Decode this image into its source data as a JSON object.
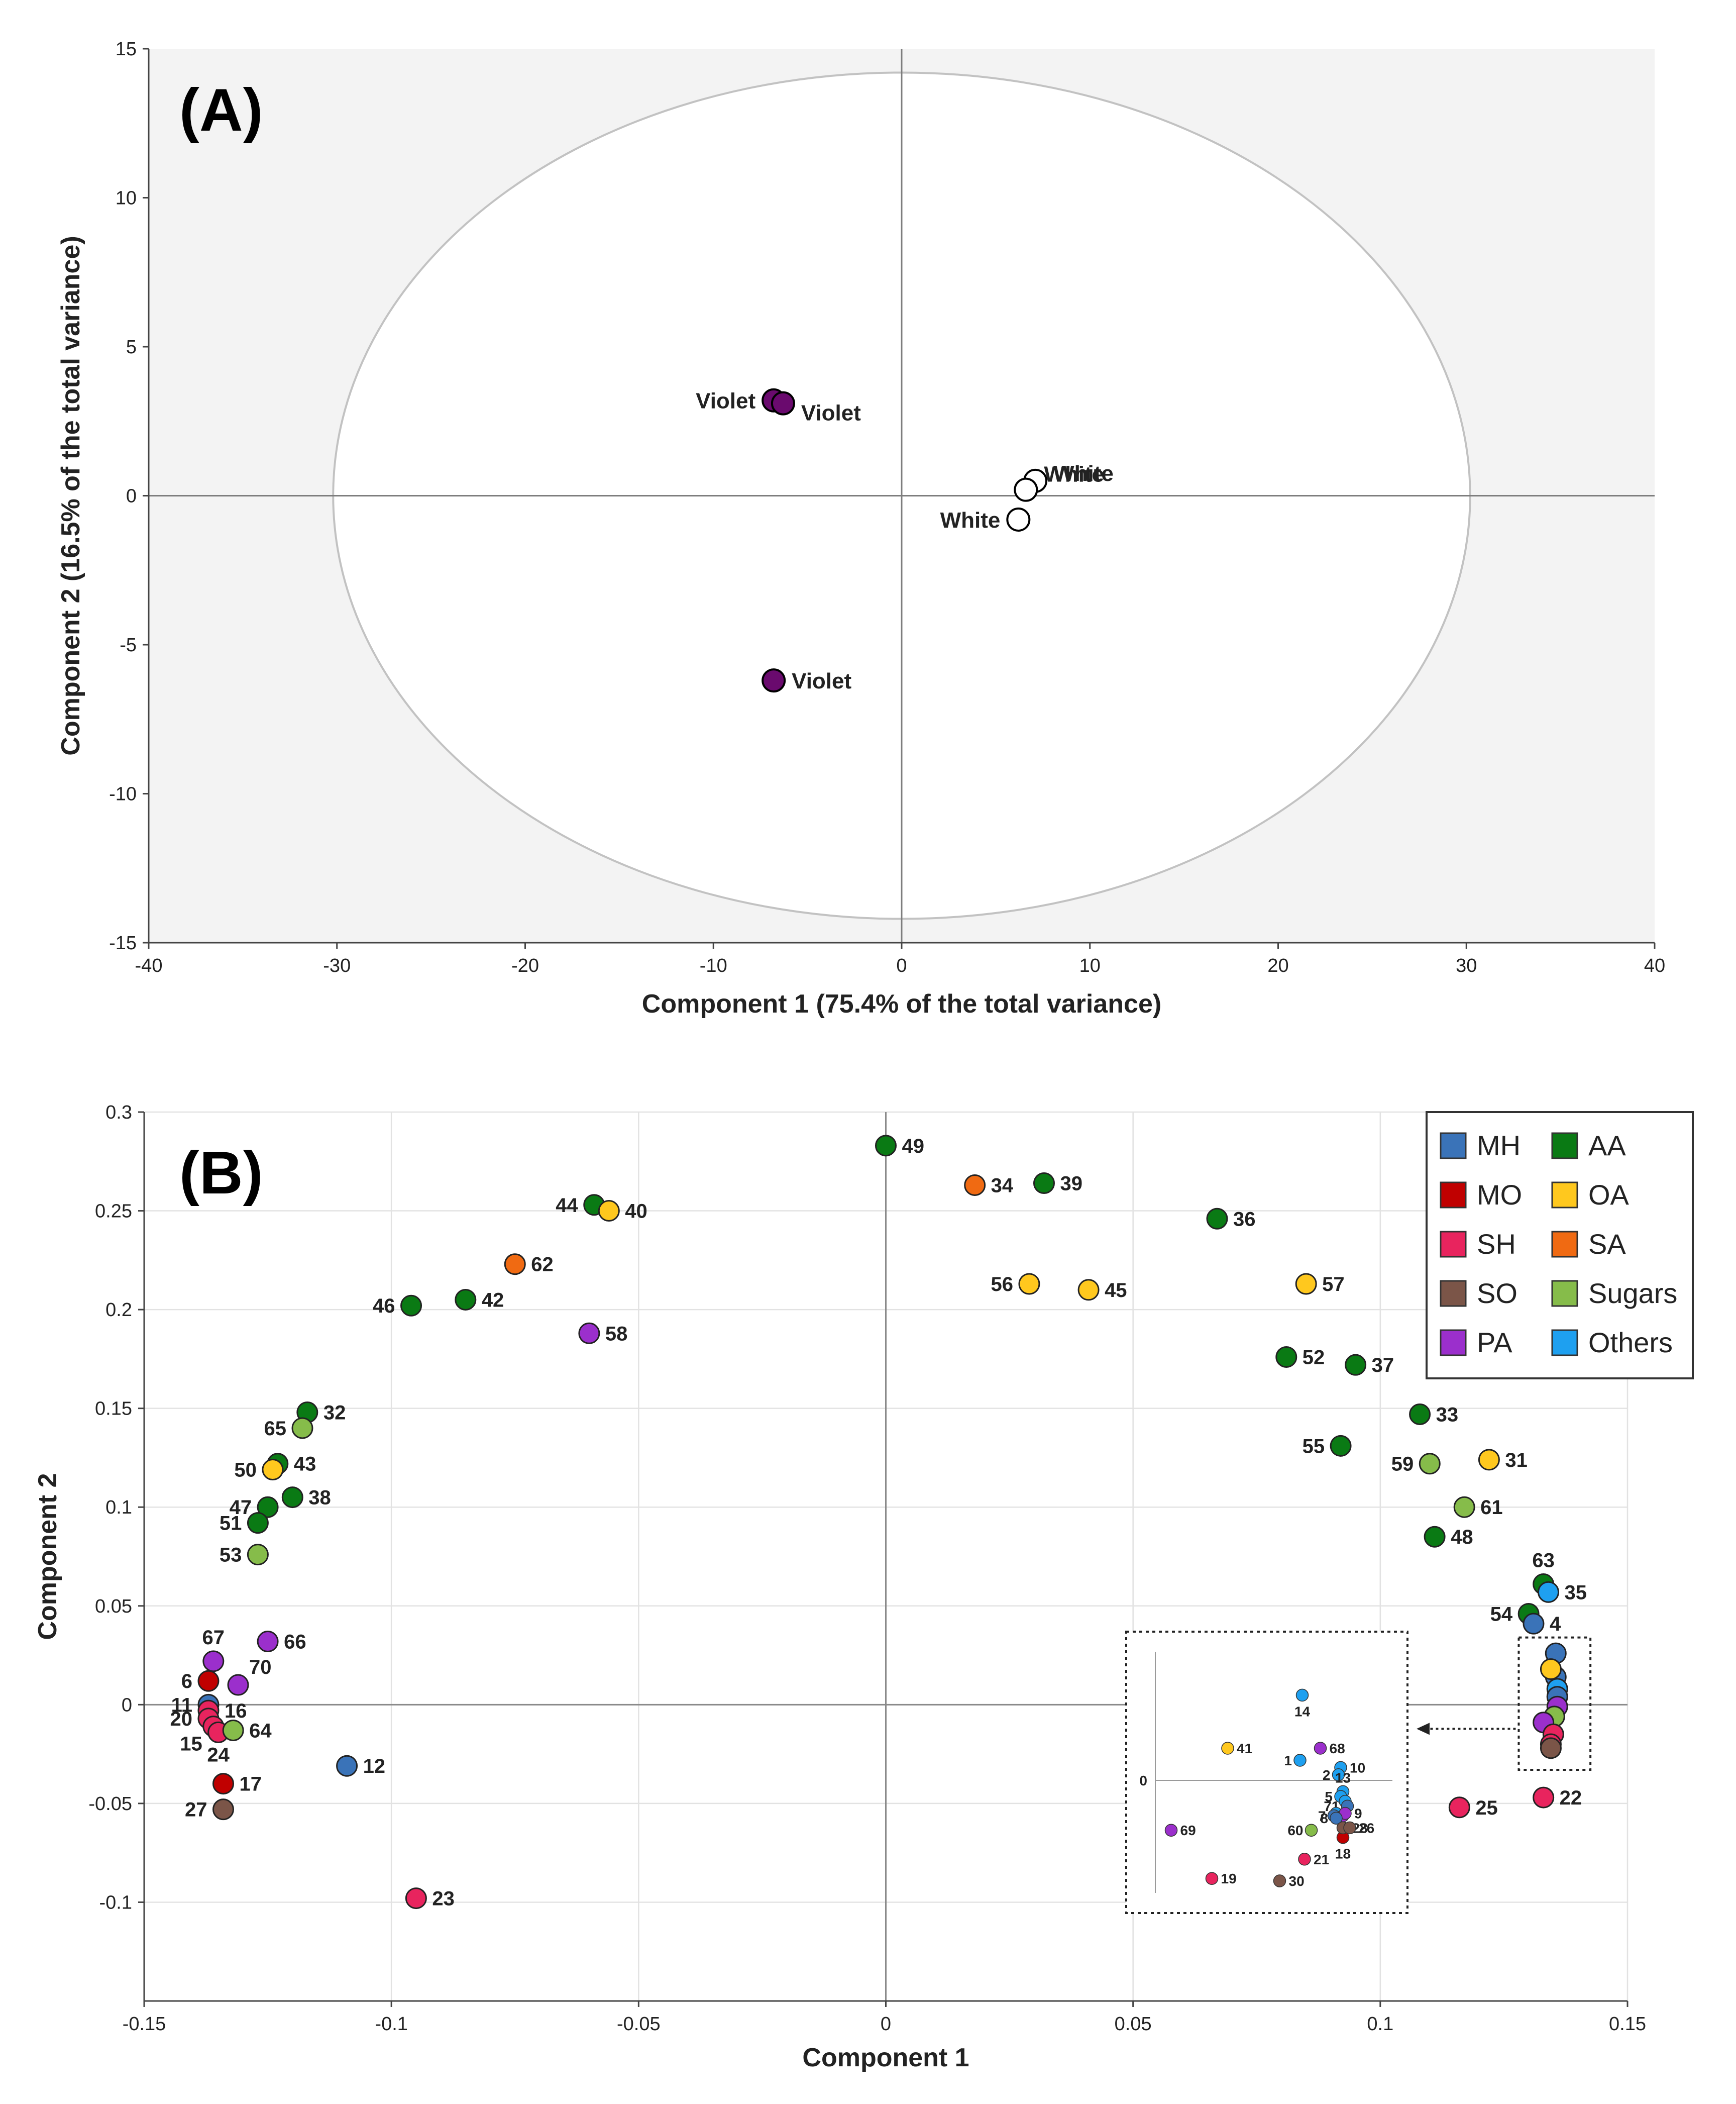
{
  "colors": {
    "violet": "#6a0a6e",
    "white": "#ffffff",
    "MH": "#3a73b8",
    "MO": "#c00000",
    "SH": "#e8245e",
    "SO": "#7b5548",
    "PA": "#9b2fcc",
    "AA": "#0a7a14",
    "OA": "#ffc81e",
    "SA": "#f06a12",
    "Sugars": "#86bc4a",
    "Others": "#1ea0f0"
  },
  "chart_data": [
    {
      "panel": "(A)",
      "type": "scatter",
      "xlabel": "Component 1 (75.4% of the total variance)",
      "ylabel": "Component 2 (16.5% of the total variance)",
      "xlim": [
        -40,
        40
      ],
      "ylim": [
        -15,
        15
      ],
      "xticks": [
        "-40",
        "-30",
        "-20",
        "-10",
        "0",
        "10",
        "20",
        "30",
        "40"
      ],
      "yticks": [
        "15",
        "10",
        "5",
        "0",
        "-5",
        "-10",
        "-15"
      ],
      "ellipse": {
        "cx": 0,
        "cy": 0,
        "rx": 30.2,
        "ry": 14.2
      },
      "points": [
        {
          "x": -6.8,
          "y": 3.2,
          "label": "Violet",
          "group": "violet"
        },
        {
          "x": -6.3,
          "y": 3.1,
          "label": "Violet",
          "group": "violet"
        },
        {
          "x": -6.8,
          "y": -6.2,
          "label": "Violet",
          "group": "violet"
        },
        {
          "x": 7.1,
          "y": 0.5,
          "label": "White",
          "group": "white"
        },
        {
          "x": 6.6,
          "y": 0.2,
          "label": "White",
          "group": "white"
        },
        {
          "x": 6.2,
          "y": -0.8,
          "label": "White",
          "group": "white"
        }
      ]
    },
    {
      "panel": "(B)",
      "type": "scatter",
      "xlabel": "Component 1",
      "ylabel": "Component 2",
      "xlim": [
        -0.15,
        0.15
      ],
      "ylim": [
        -0.15,
        0.3
      ],
      "xticks": [
        "-0.15",
        "-0.1",
        "-0.05",
        "0",
        "0.05",
        "0.1",
        "0.15"
      ],
      "yticks": [
        "0.3",
        "0.25",
        "0.2",
        "0.15",
        "0.1",
        "0.05",
        "0",
        "-0.05",
        "-0.1"
      ],
      "legend": [
        {
          "key": "MH",
          "label": "MH"
        },
        {
          "key": "AA",
          "label": "AA"
        },
        {
          "key": "MO",
          "label": "MO"
        },
        {
          "key": "OA",
          "label": "OA"
        },
        {
          "key": "SH",
          "label": "SH"
        },
        {
          "key": "SA",
          "label": "SA"
        },
        {
          "key": "SO",
          "label": "SO"
        },
        {
          "key": "Sugars",
          "label": "Sugars"
        },
        {
          "key": "PA",
          "label": "PA"
        },
        {
          "key": "Others",
          "label": "Others"
        }
      ],
      "points": [
        {
          "x": 0.0,
          "y": 0.283,
          "label": "49",
          "group": "AA",
          "side": "right"
        },
        {
          "x": 0.018,
          "y": 0.263,
          "label": "34",
          "group": "SA",
          "side": "right"
        },
        {
          "x": 0.032,
          "y": 0.264,
          "label": "39",
          "group": "AA",
          "side": "right"
        },
        {
          "x": 0.067,
          "y": 0.246,
          "label": "36",
          "group": "AA",
          "side": "right"
        },
        {
          "x": -0.059,
          "y": 0.253,
          "label": "44",
          "group": "AA",
          "side": "left"
        },
        {
          "x": -0.056,
          "y": 0.25,
          "label": "40",
          "group": "OA",
          "side": "right"
        },
        {
          "x": -0.075,
          "y": 0.223,
          "label": "62",
          "group": "SA",
          "side": "right"
        },
        {
          "x": -0.096,
          "y": 0.202,
          "label": "46",
          "group": "AA",
          "side": "left"
        },
        {
          "x": -0.085,
          "y": 0.205,
          "label": "42",
          "group": "AA",
          "side": "right"
        },
        {
          "x": -0.06,
          "y": 0.188,
          "label": "58",
          "group": "PA",
          "side": "right"
        },
        {
          "x": 0.029,
          "y": 0.213,
          "label": "56",
          "group": "OA",
          "side": "left"
        },
        {
          "x": 0.041,
          "y": 0.21,
          "label": "45",
          "group": "OA",
          "side": "right"
        },
        {
          "x": 0.085,
          "y": 0.213,
          "label": "57",
          "group": "OA",
          "side": "right"
        },
        {
          "x": 0.081,
          "y": 0.176,
          "label": "52",
          "group": "AA",
          "side": "right"
        },
        {
          "x": 0.095,
          "y": 0.172,
          "label": "37",
          "group": "AA",
          "side": "right"
        },
        {
          "x": 0.108,
          "y": 0.147,
          "label": "33",
          "group": "AA",
          "side": "right"
        },
        {
          "x": 0.092,
          "y": 0.131,
          "label": "55",
          "group": "AA",
          "side": "left"
        },
        {
          "x": 0.11,
          "y": 0.122,
          "label": "59",
          "group": "Sugars",
          "side": "left"
        },
        {
          "x": 0.122,
          "y": 0.124,
          "label": "31",
          "group": "OA",
          "side": "right"
        },
        {
          "x": 0.117,
          "y": 0.1,
          "label": "61",
          "group": "Sugars",
          "side": "right"
        },
        {
          "x": 0.111,
          "y": 0.085,
          "label": "48",
          "group": "AA",
          "side": "right"
        },
        {
          "x": 0.133,
          "y": 0.061,
          "label": "63",
          "group": "AA",
          "side": "above"
        },
        {
          "x": 0.134,
          "y": 0.057,
          "label": "35",
          "group": "Others",
          "side": "right"
        },
        {
          "x": 0.13,
          "y": 0.046,
          "label": "54",
          "group": "AA",
          "side": "left"
        },
        {
          "x": 0.131,
          "y": 0.041,
          "label": "4",
          "group": "MH",
          "side": "right"
        },
        {
          "x": -0.117,
          "y": 0.148,
          "label": "32",
          "group": "AA",
          "side": "right"
        },
        {
          "x": -0.118,
          "y": 0.14,
          "label": "65",
          "group": "Sugars",
          "side": "left"
        },
        {
          "x": -0.123,
          "y": 0.122,
          "label": "43",
          "group": "AA",
          "side": "right"
        },
        {
          "x": -0.124,
          "y": 0.119,
          "label": "50",
          "group": "OA",
          "side": "left"
        },
        {
          "x": -0.12,
          "y": 0.105,
          "label": "38",
          "group": "AA",
          "side": "right"
        },
        {
          "x": -0.125,
          "y": 0.1,
          "label": "47",
          "group": "AA",
          "side": "left"
        },
        {
          "x": -0.127,
          "y": 0.092,
          "label": "51",
          "group": "AA",
          "side": "left"
        },
        {
          "x": -0.127,
          "y": 0.076,
          "label": "53",
          "group": "Sugars",
          "side": "left"
        },
        {
          "x": -0.136,
          "y": 0.022,
          "label": "67",
          "group": "PA",
          "side": "above"
        },
        {
          "x": -0.125,
          "y": 0.032,
          "label": "66",
          "group": "PA",
          "side": "right"
        },
        {
          "x": -0.131,
          "y": 0.01,
          "label": "70",
          "group": "PA",
          "side": "aboveright"
        },
        {
          "x": -0.137,
          "y": 0.012,
          "label": "6",
          "group": "MO",
          "side": "left"
        },
        {
          "x": -0.137,
          "y": 0.0,
          "label": "11",
          "group": "MH",
          "side": "left"
        },
        {
          "x": -0.137,
          "y": -0.003,
          "label": "16",
          "group": "SH",
          "side": "right"
        },
        {
          "x": -0.137,
          "y": -0.007,
          "label": "20",
          "group": "SH",
          "side": "left"
        },
        {
          "x": -0.136,
          "y": -0.011,
          "label": "15",
          "group": "SH",
          "side": "belowleft"
        },
        {
          "x": -0.135,
          "y": -0.014,
          "label": "24",
          "group": "SH",
          "side": "below"
        },
        {
          "x": -0.132,
          "y": -0.013,
          "label": "64",
          "group": "Sugars",
          "side": "right"
        },
        {
          "x": -0.134,
          "y": -0.04,
          "label": "17",
          "group": "MO",
          "side": "right"
        },
        {
          "x": -0.134,
          "y": -0.053,
          "label": "27",
          "group": "SO",
          "side": "left"
        },
        {
          "x": -0.109,
          "y": -0.031,
          "label": "12",
          "group": "MH",
          "side": "right"
        },
        {
          "x": -0.095,
          "y": -0.098,
          "label": "23",
          "group": "SH",
          "side": "right"
        },
        {
          "x": 0.116,
          "y": -0.052,
          "label": "25",
          "group": "SH",
          "side": "right"
        },
        {
          "x": 0.133,
          "y": -0.047,
          "label": "22",
          "group": "SH",
          "side": "right"
        }
      ],
      "cluster": [
        {
          "x": 0.1355,
          "y": 0.026,
          "group": "MH"
        },
        {
          "x": 0.1355,
          "y": 0.014,
          "group": "MH"
        },
        {
          "x": 0.1345,
          "y": 0.018,
          "group": "OA"
        },
        {
          "x": 0.1358,
          "y": 0.008,
          "group": "Others"
        },
        {
          "x": 0.1358,
          "y": 0.004,
          "group": "MH"
        },
        {
          "x": 0.1358,
          "y": -0.001,
          "group": "PA"
        },
        {
          "x": 0.1352,
          "y": -0.006,
          "group": "Sugars"
        },
        {
          "x": 0.133,
          "y": -0.009,
          "group": "PA"
        },
        {
          "x": 0.135,
          "y": -0.015,
          "group": "SH"
        },
        {
          "x": 0.1345,
          "y": -0.02,
          "group": "SH"
        },
        {
          "x": 0.1345,
          "y": -0.022,
          "group": "SO"
        }
      ],
      "inset": {
        "zero_label": "0",
        "points": [
          {
            "u": 0.65,
            "v": 0.18,
            "label": "14",
            "group": "Others",
            "side": "below"
          },
          {
            "u": 0.32,
            "v": 0.4,
            "label": "41",
            "group": "OA",
            "side": "right"
          },
          {
            "u": 0.73,
            "v": 0.4,
            "label": "68",
            "group": "PA",
            "side": "right"
          },
          {
            "u": 0.64,
            "v": 0.45,
            "label": "1",
            "group": "Others",
            "side": "left"
          },
          {
            "u": 0.82,
            "v": 0.48,
            "label": "10",
            "group": "Others",
            "side": "right"
          },
          {
            "u": 0.81,
            "v": 0.51,
            "label": "2",
            "group": "Others",
            "side": "left"
          },
          {
            "u": 0.83,
            "v": 0.58,
            "label": "13",
            "group": "Others",
            "side": "above"
          },
          {
            "u": 0.82,
            "v": 0.6,
            "label": "5",
            "group": "Others",
            "side": "left"
          },
          {
            "u": 0.84,
            "v": 0.62,
            "label": "",
            "group": "Others",
            "side": "none"
          },
          {
            "u": 0.85,
            "v": 0.64,
            "label": "71",
            "group": "MH",
            "side": "left"
          },
          {
            "u": 0.8,
            "v": 0.67,
            "label": "",
            "group": "Others",
            "side": "none"
          },
          {
            "u": 0.83,
            "v": 0.68,
            "label": "",
            "group": "PA",
            "side": "none"
          },
          {
            "u": 0.79,
            "v": 0.68,
            "label": "7",
            "group": "MH",
            "side": "left"
          },
          {
            "u": 0.84,
            "v": 0.67,
            "label": "9",
            "group": "PA",
            "side": "right"
          },
          {
            "u": 0.8,
            "v": 0.69,
            "label": "8",
            "group": "MH",
            "side": "left"
          },
          {
            "u": 0.69,
            "v": 0.74,
            "label": "60",
            "group": "Sugars",
            "side": "left"
          },
          {
            "u": 0.83,
            "v": 0.77,
            "label": "18",
            "group": "MO",
            "side": "below"
          },
          {
            "u": 0.83,
            "v": 0.73,
            "label": "28",
            "group": "SO",
            "side": "right"
          },
          {
            "u": 0.86,
            "v": 0.73,
            "label": "26",
            "group": "SO",
            "side": "right"
          },
          {
            "u": 0.07,
            "v": 0.74,
            "label": "69",
            "group": "PA",
            "side": "right"
          },
          {
            "u": 0.66,
            "v": 0.86,
            "label": "21",
            "group": "SH",
            "side": "right"
          },
          {
            "u": 0.25,
            "v": 0.94,
            "label": "19",
            "group": "SH",
            "side": "right"
          },
          {
            "u": 0.55,
            "v": 0.95,
            "label": "30",
            "group": "SO",
            "side": "right"
          }
        ]
      }
    }
  ]
}
